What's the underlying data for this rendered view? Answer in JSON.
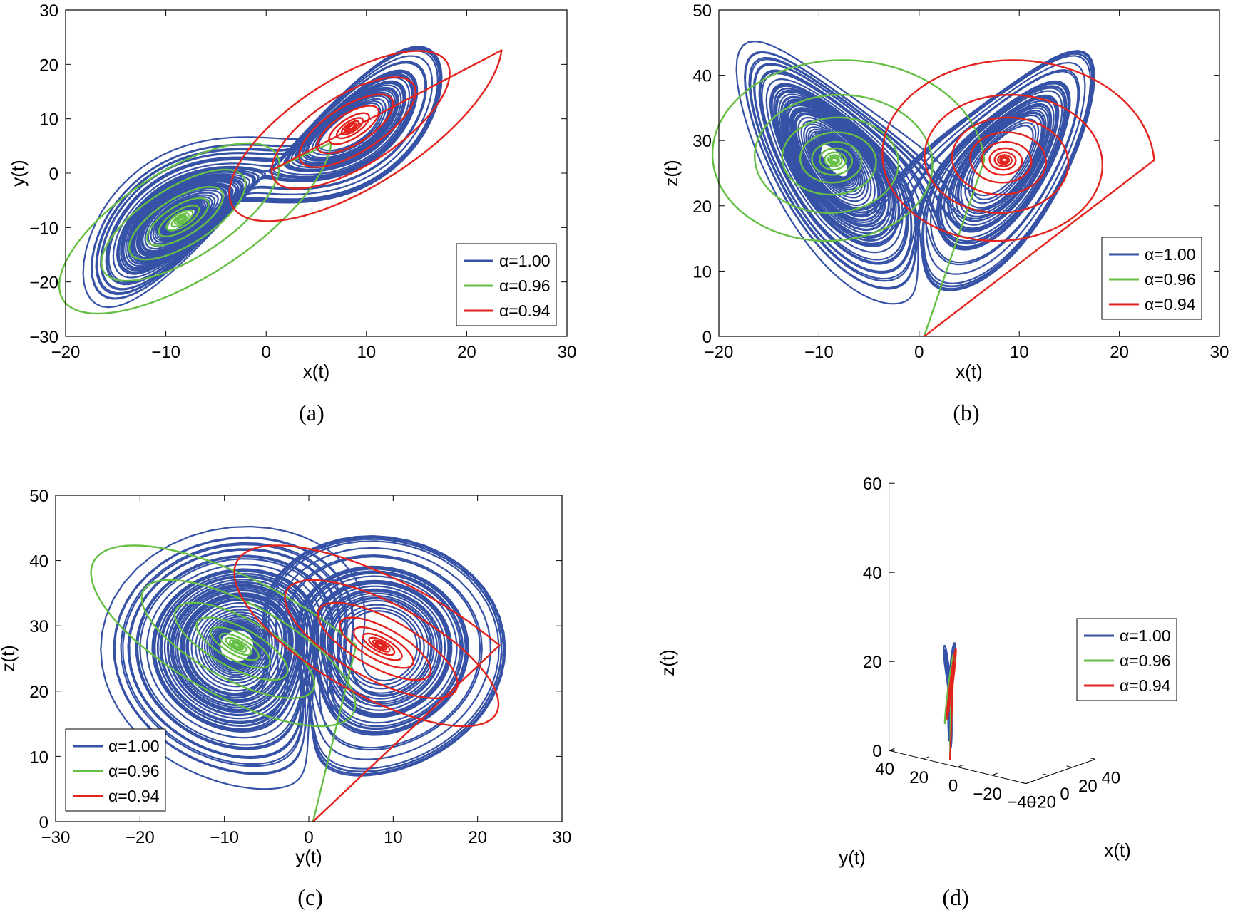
{
  "colors": {
    "s1": "#3552a6",
    "s2": "#66bf45",
    "s3": "#e3231d"
  },
  "legend": [
    "α=1.00",
    "α=0.96",
    "α=0.94"
  ],
  "chart_data": [
    {
      "type": "line",
      "caption": "(a)",
      "xlabel": "x(t)",
      "ylabel": "y(t)",
      "xlim": [
        -20,
        30
      ],
      "ylim": [
        -30,
        30
      ],
      "xticks": [
        -20,
        -10,
        0,
        10,
        20,
        30
      ],
      "yticks": [
        -30,
        -20,
        -10,
        0,
        10,
        20,
        30
      ],
      "series": [
        {
          "name": "α=1.00",
          "description": "Lorenz attractor projection, two wings around (-8.5,-8.5) and (8.5,8.5)"
        },
        {
          "name": "α=0.96",
          "description": "spiral converging to (-8.5,-8.5)"
        },
        {
          "name": "α=0.94",
          "description": "spiral converging to (8.5,8.5)"
        }
      ],
      "legend_position": "bottom-right"
    },
    {
      "type": "line",
      "caption": "(b)",
      "xlabel": "x(t)",
      "ylabel": "z(t)",
      "xlim": [
        -20,
        30
      ],
      "ylim": [
        0,
        50
      ],
      "xticks": [
        -20,
        -10,
        0,
        10,
        20,
        30
      ],
      "yticks": [
        0,
        10,
        20,
        30,
        40,
        50
      ],
      "series": [
        {
          "name": "α=1.00",
          "description": "butterfly attractor"
        },
        {
          "name": "α=0.96",
          "description": "spiral converging to (-8.5,27)"
        },
        {
          "name": "α=0.94",
          "description": "spiral converging to (8.5,27)"
        }
      ],
      "legend_position": "bottom-right"
    },
    {
      "type": "line",
      "caption": "(c)",
      "xlabel": "y(t)",
      "ylabel": "z(t)",
      "xlim": [
        -30,
        30
      ],
      "ylim": [
        0,
        50
      ],
      "xticks": [
        -30,
        -20,
        -10,
        0,
        10,
        20,
        30
      ],
      "yticks": [
        0,
        10,
        20,
        30,
        40,
        50
      ],
      "series": [
        {
          "name": "α=1.00",
          "description": "two-lobe attractor"
        },
        {
          "name": "α=0.96",
          "description": "spiral converging to (-8.5,27)"
        },
        {
          "name": "α=0.94",
          "description": "spiral converging to (8.5,27)"
        }
      ],
      "legend_position": "bottom-left"
    },
    {
      "type": "line",
      "caption": "(d)",
      "xlabel": "x(t)",
      "ylabel": "y(t)",
      "zlabel": "z(t)",
      "xticks": [
        -20,
        0,
        20,
        40
      ],
      "yticks": [
        40,
        20,
        0,
        -20,
        -40
      ],
      "zticks": [
        0,
        20,
        40,
        60
      ],
      "series": [
        {
          "name": "α=1.00",
          "description": "3D Lorenz attractor"
        },
        {
          "name": "α=0.96",
          "description": "3D trajectory"
        },
        {
          "name": "α=0.94",
          "description": "3D trajectory"
        }
      ],
      "legend_position": "right"
    }
  ]
}
